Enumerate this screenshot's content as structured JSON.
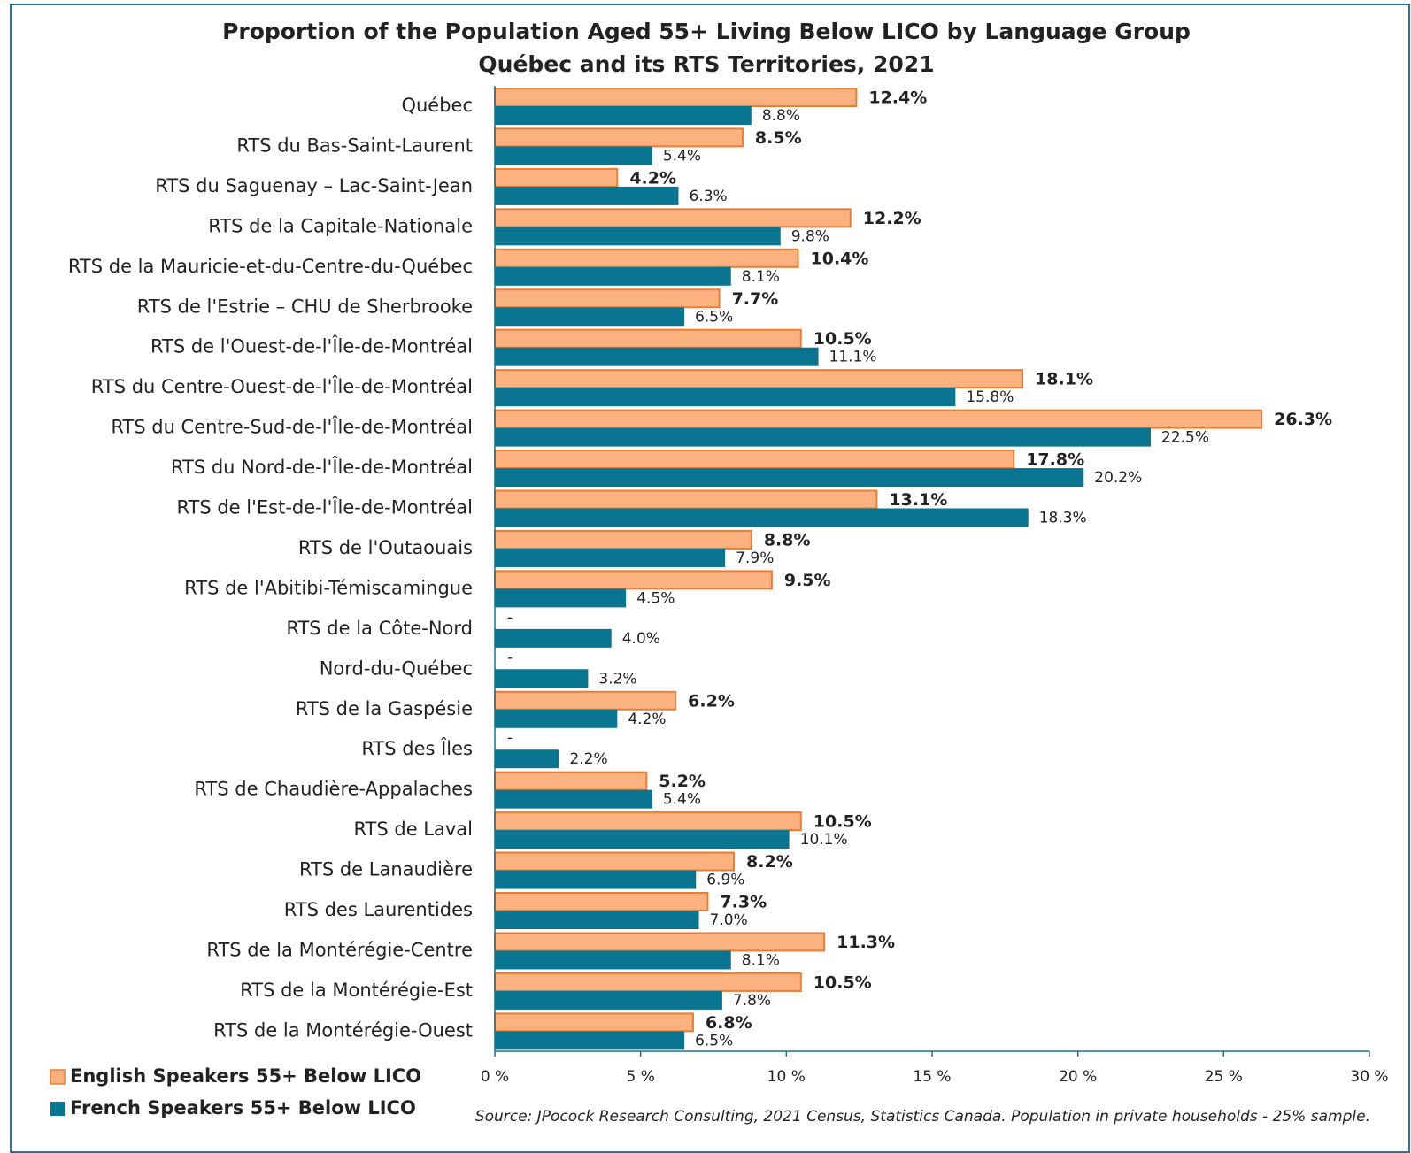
{
  "chart_data": {
    "type": "hbar",
    "title": "Proportion of the Population  Aged 55+ Living Below LICO by Language Group",
    "subtitle": "Québec and its RTS Territories, 2021",
    "categories": [
      "Québec",
      "RTS du Bas-Saint-Laurent",
      "RTS du Saguenay – Lac-Saint-Jean",
      "RTS de la Capitale-Nationale",
      "RTS de la Mauricie-et-du-Centre-du-Québec",
      "RTS de l'Estrie – CHU de Sherbrooke",
      "RTS de l'Ouest-de-l'Île-de-Montréal",
      "RTS du Centre-Ouest-de-l'Île-de-Montréal",
      "RTS du Centre-Sud-de-l'Île-de-Montréal",
      "RTS du Nord-de-l'Île-de-Montréal",
      "RTS de l'Est-de-l'Île-de-Montréal",
      "RTS de l'Outaouais",
      "RTS de l'Abitibi-Témiscamingue",
      "RTS de la Côte-Nord",
      "Nord-du-Québec",
      "RTS de la Gaspésie",
      "RTS des Îles",
      "RTS de Chaudière-Appalaches",
      "RTS de Laval",
      "RTS de Lanaudière",
      "RTS des Laurentides",
      "RTS de la Montérégie-Centre",
      "RTS de la Montérégie-Est",
      "RTS de la Montérégie-Ouest"
    ],
    "series": [
      {
        "name": "English Speakers 55+ Below LICO",
        "color": "#fbb27f",
        "edgecolor": "#ed7d31",
        "values": [
          12.4,
          8.5,
          4.2,
          12.2,
          10.4,
          7.7,
          10.5,
          18.1,
          26.3,
          17.8,
          13.1,
          8.8,
          9.5,
          null,
          null,
          6.2,
          null,
          5.2,
          10.5,
          8.2,
          7.3,
          11.3,
          10.5,
          6.8
        ],
        "value_labels": [
          "12.4%",
          "8.5%",
          "4.2%",
          "12.2%",
          "10.4%",
          "7.7%",
          "10.5%",
          "18.1%",
          "26.3%",
          "17.8%",
          "13.1%",
          "8.8%",
          "9.5%",
          "-",
          "-",
          "6.2%",
          "-",
          "5.2%",
          "10.5%",
          "8.2%",
          "7.3%",
          "11.3%",
          "10.5%",
          "6.8%"
        ]
      },
      {
        "name": "French Speakers 55+ Below LICO",
        "color": "#0a7591",
        "values": [
          8.8,
          5.4,
          6.3,
          9.8,
          8.1,
          6.5,
          11.1,
          15.8,
          22.5,
          20.2,
          18.3,
          7.9,
          4.5,
          4.0,
          3.2,
          4.2,
          2.2,
          5.4,
          10.1,
          6.9,
          7.0,
          8.1,
          7.8,
          6.5
        ],
        "value_labels": [
          "8.8%",
          "5.4%",
          "6.3%",
          "9.8%",
          "8.1%",
          "6.5%",
          "11.1%",
          "15.8%",
          "22.5%",
          "20.2%",
          "18.3%",
          "7.9%",
          "4.5%",
          "4.0%",
          "3.2%",
          "4.2%",
          "2.2%",
          "5.4%",
          "10.1%",
          "6.9%",
          "7.0%",
          "8.1%",
          "7.8%",
          "6.5%"
        ]
      }
    ],
    "xlim": [
      0,
      30
    ],
    "xticks": [
      {
        "value": 0,
        "label": "0 %"
      },
      {
        "value": 5,
        "label": "5 %"
      },
      {
        "value": 10,
        "label": "10 %"
      },
      {
        "value": 15,
        "label": "15 %"
      },
      {
        "value": 20,
        "label": "20 %"
      },
      {
        "value": 25,
        "label": "25 %"
      },
      {
        "value": 30,
        "label": "30 %"
      }
    ],
    "legend": "bottom-left",
    "source": "Source: JPocock Research Consulting, 2021 Census, Statistics Canada. Population in private households - 25% sample."
  }
}
